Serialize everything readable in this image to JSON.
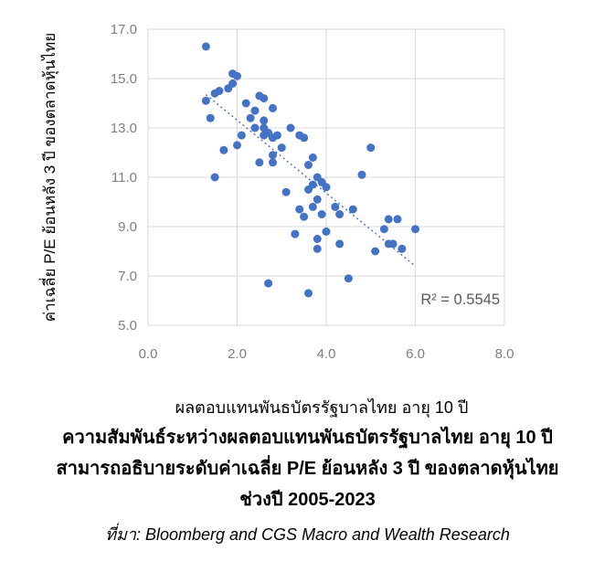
{
  "chart_data": {
    "type": "scatter",
    "xlabel": "ผลตอบแทนพันธบัตรรัฐบาลไทย  อายุ 10 ปี",
    "ylabel": "ค่าเฉลี่ย P/E ย้อนหลัง 3 ปี ของตลาดหุ้นไทย",
    "xlim": [
      0.0,
      8.0
    ],
    "ylim": [
      5.0,
      17.0
    ],
    "x_ticks": [
      "0.0",
      "2.0",
      "4.0",
      "6.0",
      "8.0"
    ],
    "y_ticks": [
      "5.0",
      "7.0",
      "9.0",
      "11.0",
      "13.0",
      "15.0",
      "17.0"
    ],
    "grid": true,
    "legend": "none",
    "annotation_r2": "R² = 0.5545",
    "trendline": {
      "x1": 1.3,
      "y1": 14.35,
      "x2": 6.0,
      "y2": 7.4,
      "style": "dotted"
    },
    "points": [
      [
        1.3,
        16.3
      ],
      [
        1.9,
        15.2
      ],
      [
        2.0,
        15.1
      ],
      [
        1.9,
        14.8
      ],
      [
        1.8,
        14.6
      ],
      [
        1.6,
        14.5
      ],
      [
        1.5,
        14.4
      ],
      [
        2.5,
        14.3
      ],
      [
        2.6,
        14.2
      ],
      [
        1.3,
        14.1
      ],
      [
        2.2,
        14.0
      ],
      [
        2.8,
        13.8
      ],
      [
        2.4,
        13.7
      ],
      [
        1.4,
        13.4
      ],
      [
        2.3,
        13.4
      ],
      [
        2.6,
        13.3
      ],
      [
        3.2,
        13.0
      ],
      [
        2.4,
        13.0
      ],
      [
        2.6,
        13.0
      ],
      [
        2.1,
        12.7
      ],
      [
        2.6,
        12.7
      ],
      [
        2.7,
        12.8
      ],
      [
        2.8,
        12.6
      ],
      [
        2.9,
        12.7
      ],
      [
        3.4,
        12.7
      ],
      [
        3.5,
        12.6
      ],
      [
        2.0,
        12.3
      ],
      [
        3.0,
        12.2
      ],
      [
        1.7,
        12.1
      ],
      [
        5.0,
        12.2
      ],
      [
        2.8,
        11.9
      ],
      [
        2.5,
        11.6
      ],
      [
        2.8,
        11.6
      ],
      [
        3.6,
        11.5
      ],
      [
        3.7,
        11.8
      ],
      [
        1.5,
        11.0
      ],
      [
        4.8,
        11.1
      ],
      [
        3.8,
        11.0
      ],
      [
        3.7,
        10.7
      ],
      [
        3.9,
        10.8
      ],
      [
        4.0,
        10.6
      ],
      [
        3.1,
        10.4
      ],
      [
        3.6,
        10.5
      ],
      [
        3.8,
        10.1
      ],
      [
        3.4,
        9.7
      ],
      [
        3.7,
        9.8
      ],
      [
        3.9,
        9.5
      ],
      [
        4.2,
        9.8
      ],
      [
        4.6,
        9.7
      ],
      [
        3.5,
        9.4
      ],
      [
        4.3,
        9.5
      ],
      [
        5.4,
        9.3
      ],
      [
        5.6,
        9.3
      ],
      [
        5.3,
        8.9
      ],
      [
        6.0,
        8.9
      ],
      [
        3.3,
        8.7
      ],
      [
        3.8,
        8.5
      ],
      [
        4.0,
        8.8
      ],
      [
        3.8,
        8.1
      ],
      [
        4.3,
        8.3
      ],
      [
        5.4,
        8.3
      ],
      [
        5.5,
        8.3
      ],
      [
        5.7,
        8.1
      ],
      [
        5.1,
        8.0
      ],
      [
        4.5,
        6.9
      ],
      [
        2.7,
        6.7
      ],
      [
        3.6,
        6.3
      ]
    ],
    "colors": {
      "marker": "#4472C4",
      "trend": "#4472C4",
      "grid": "#D9D9D9",
      "tick_label": "#808080",
      "r2_label": "#595959",
      "axis_title": "#000000"
    }
  },
  "caption": {
    "line1": "ความสัมพันธ์ระหว่างผลตอบแทนพันธบัตรรัฐบาลไทย อายุ 10 ปี",
    "line2": "สามารถอธิบายระดับค่าเฉลี่ย P/E ย้อนหลัง 3 ปี ของตลาดหุ้นไทย",
    "line3": "ช่วงปี 2005-2023",
    "source": "ที่มา: Bloomberg and CGS Macro and Wealth Research"
  }
}
